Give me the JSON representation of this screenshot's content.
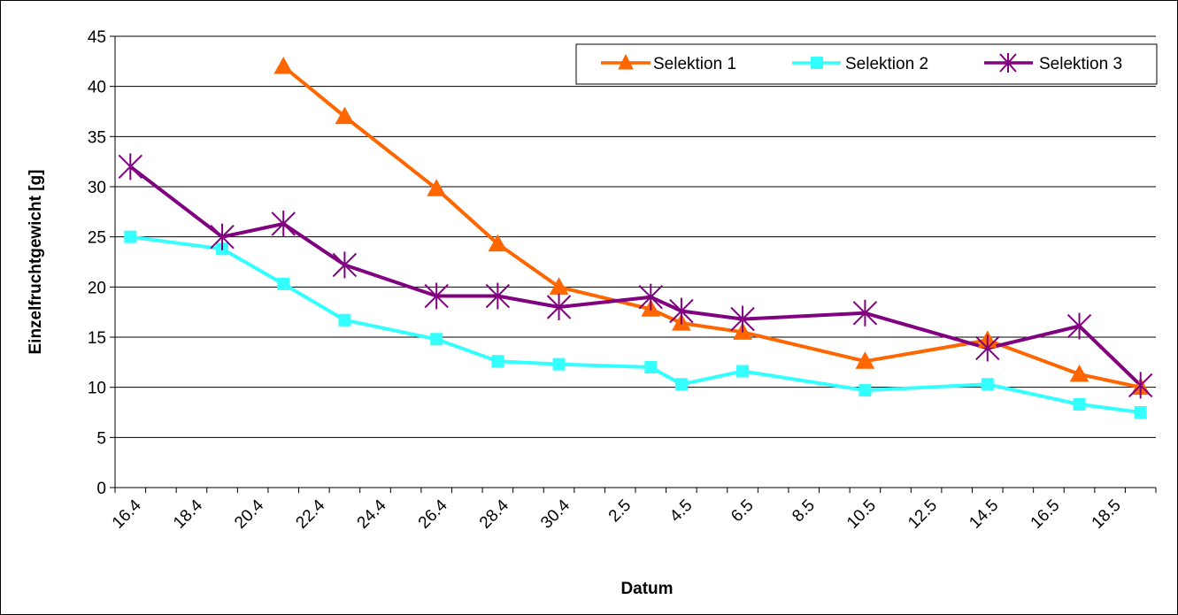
{
  "chart_data": {
    "type": "line",
    "title": "",
    "xlabel": "Datum",
    "ylabel": "Einzelfruchtgewicht [g]",
    "ylim": [
      0,
      45
    ],
    "y_ticks": [
      "0",
      "5",
      "10",
      "15",
      "20",
      "25",
      "30",
      "35",
      "40",
      "45"
    ],
    "x_tick_labels": [
      "16.4",
      "18.4",
      "20.4",
      "22.4",
      "24.4",
      "26.4",
      "28.4",
      "30.4",
      "2.5",
      "4.5",
      "6.5",
      "8.5",
      "10.5",
      "12.5",
      "14.5",
      "16.5",
      "18.5"
    ],
    "x_dates": [
      "16.4",
      "17.4",
      "18.4",
      "19.4",
      "20.4",
      "21.4",
      "22.4",
      "23.4",
      "24.4",
      "25.4",
      "26.4",
      "27.4",
      "28.4",
      "29.4",
      "30.4",
      "1.5",
      "2.5",
      "3.5",
      "4.5",
      "5.5",
      "6.5",
      "7.5",
      "8.5",
      "9.5",
      "10.5",
      "11.5",
      "12.5",
      "13.5",
      "14.5",
      "15.5",
      "16.5",
      "17.5",
      "18.5",
      "19.5"
    ],
    "grid": true,
    "legend_position": "top-right",
    "series": [
      {
        "name": "Selektion 1",
        "color": "#FF6600",
        "marker": "triangle",
        "points": [
          {
            "date": "21.4",
            "value": 42.0
          },
          {
            "date": "23.4",
            "value": 37.0
          },
          {
            "date": "26.4",
            "value": 29.8
          },
          {
            "date": "28.4",
            "value": 24.3
          },
          {
            "date": "30.4",
            "value": 20.0
          },
          {
            "date": "3.5",
            "value": 17.8
          },
          {
            "date": "4.5",
            "value": 16.4
          },
          {
            "date": "6.5",
            "value": 15.5
          },
          {
            "date": "10.5",
            "value": 12.6
          },
          {
            "date": "14.5",
            "value": 14.7
          },
          {
            "date": "17.5",
            "value": 11.3
          },
          {
            "date": "19.5",
            "value": 10.0
          }
        ]
      },
      {
        "name": "Selektion 2",
        "color": "#33FFFF",
        "marker": "square",
        "points": [
          {
            "date": "16.4",
            "value": 25.0
          },
          {
            "date": "19.4",
            "value": 23.8
          },
          {
            "date": "21.4",
            "value": 20.3
          },
          {
            "date": "23.4",
            "value": 16.7
          },
          {
            "date": "26.4",
            "value": 14.8
          },
          {
            "date": "28.4",
            "value": 12.6
          },
          {
            "date": "30.4",
            "value": 12.3
          },
          {
            "date": "3.5",
            "value": 12.0
          },
          {
            "date": "4.5",
            "value": 10.3
          },
          {
            "date": "6.5",
            "value": 11.6
          },
          {
            "date": "10.5",
            "value": 9.7
          },
          {
            "date": "14.5",
            "value": 10.3
          },
          {
            "date": "17.5",
            "value": 8.3
          },
          {
            "date": "19.5",
            "value": 7.5
          }
        ]
      },
      {
        "name": "Selektion 3",
        "color": "#800080",
        "marker": "star",
        "points": [
          {
            "date": "16.4",
            "value": 32.0
          },
          {
            "date": "19.4",
            "value": 25.0
          },
          {
            "date": "21.4",
            "value": 26.3
          },
          {
            "date": "23.4",
            "value": 22.2
          },
          {
            "date": "26.4",
            "value": 19.1
          },
          {
            "date": "28.4",
            "value": 19.1
          },
          {
            "date": "30.4",
            "value": 18.0
          },
          {
            "date": "3.5",
            "value": 19.0
          },
          {
            "date": "4.5",
            "value": 17.6
          },
          {
            "date": "6.5",
            "value": 16.8
          },
          {
            "date": "10.5",
            "value": 17.4
          },
          {
            "date": "14.5",
            "value": 13.9
          },
          {
            "date": "17.5",
            "value": 16.1
          },
          {
            "date": "19.5",
            "value": 10.2
          }
        ]
      }
    ]
  }
}
